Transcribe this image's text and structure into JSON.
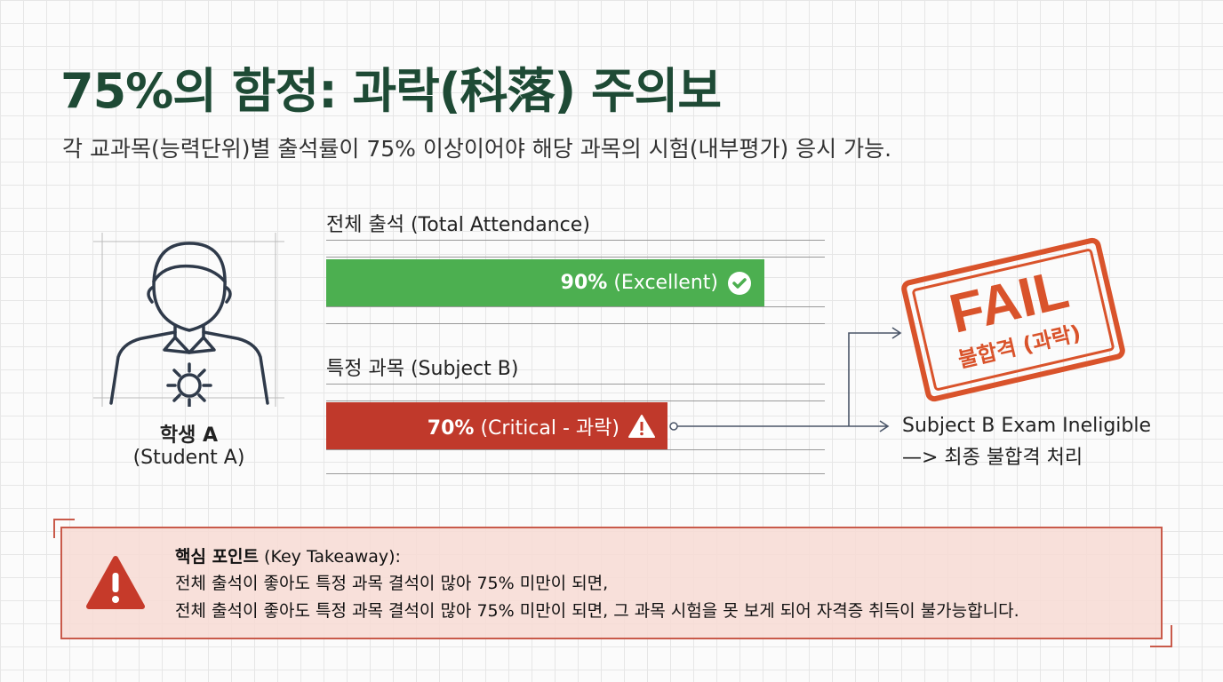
{
  "title": "75%의 함정: 과락(科落) 주의보",
  "subtitle": "각 교과목(능력단위)별 출석률이 75% 이상이어야 해당 과목의 시험(내부평가) 응시 가능.",
  "student": {
    "name_bold": "학생 A",
    "name_en": "(Student A)",
    "icon": "person-gear-icon"
  },
  "bars": [
    {
      "label": "전체 출석 (Total Attendance)",
      "value": 90,
      "value_text": "90%",
      "status": "(Excellent)",
      "color": "#4caf50",
      "icon": "check-circle-icon"
    },
    {
      "label": "특정 과목 (Subject B)",
      "value": 70,
      "value_text": "70%",
      "status": "(Critical - 과락)",
      "color": "#c0392b",
      "icon": "warning-icon"
    }
  ],
  "stamp": {
    "main": "FAIL",
    "sub": "불합격 (과락)",
    "color": "#d9532b"
  },
  "result": {
    "line1": "Subject B Exam Ineligible",
    "line2": "—> 최종 불합격 처리"
  },
  "callout": {
    "heading_bold": "핵심 포인트",
    "heading_rest": " (Key Takeaway):",
    "line1": "전체 출석이 좋아도 특정 과목 결석이 많아 75% 미만이 되면,",
    "line2": "전체 출석이 좋아도 특정 과목 결석이 많아 75% 미만이 되면, 그 과목 시험을 못 보게 되어 자격증 취득이 불가능합니다.",
    "icon": "warning-triangle-icon"
  }
}
